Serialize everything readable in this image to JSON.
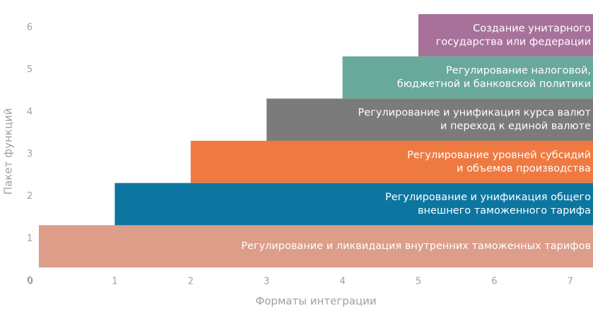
{
  "chart_data": {
    "type": "step-bar",
    "xlabel": "Форматы интеграции",
    "ylabel": "Пакет функций",
    "xlim": [
      0,
      7.3
    ],
    "xticks": [
      0,
      1,
      2,
      3,
      4,
      5,
      6,
      7
    ],
    "ylim": [
      0,
      6
    ],
    "yticks": [
      0,
      1,
      2,
      3,
      4,
      5,
      6
    ],
    "bars": [
      {
        "lines": [
          "Регулирование и ликвидация внутренних таможенных тарифов"
        ],
        "x": 0,
        "y": 0,
        "color": "#dc9d89"
      },
      {
        "lines": [
          "Регулирование и унификация общего",
          "внешнего таможенного тарифа"
        ],
        "x": 1,
        "y": 1,
        "color": "#0c76a0"
      },
      {
        "lines": [
          "Регулирование уровней субсидий",
          "и объемов производства"
        ],
        "x": 2,
        "y": 2,
        "color": "#ee7a41"
      },
      {
        "lines": [
          "Регулирование и унификация курса валют",
          "и переход к единой валюте"
        ],
        "x": 3,
        "y": 3,
        "color": "#7b7b7b"
      },
      {
        "lines": [
          "Регулирование налоговой,",
          "бюджетной и банковской политики"
        ],
        "x": 4,
        "y": 4,
        "color": "#69a99b"
      },
      {
        "lines": [
          "Создание унитарного",
          "государства или федерации"
        ],
        "x": 5,
        "y": 5,
        "color": "#a7729a"
      }
    ]
  }
}
